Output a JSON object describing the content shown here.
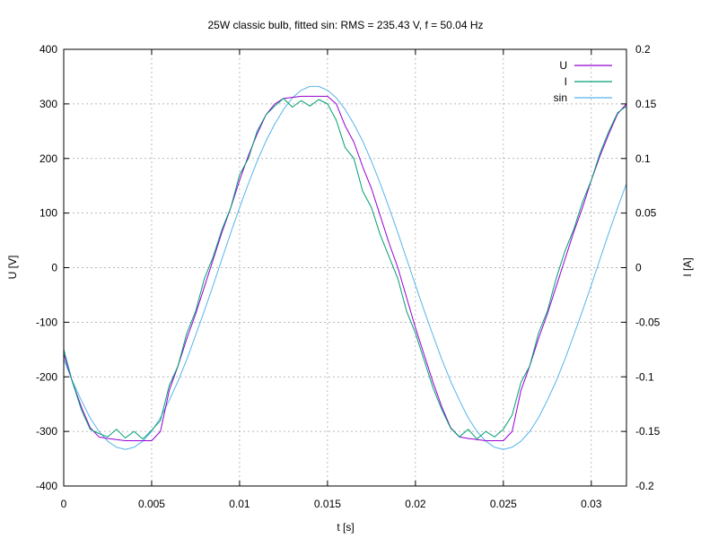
{
  "chart_data": {
    "type": "line",
    "title": "25W classic bulb, fitted sin: RMS = 235.43 V, f = 50.04 Hz",
    "xlabel": "t [s]",
    "ylabel_left": "U [V]",
    "ylabel_right": "I [A]",
    "xlim": [
      0,
      0.032
    ],
    "ylim_left": [
      -400,
      400
    ],
    "ylim_right": [
      -0.2,
      0.2
    ],
    "x_ticks": [
      "0",
      "0.005",
      "0.01",
      "0.015",
      "0.02",
      "0.025",
      "0.03"
    ],
    "y_ticks_left": [
      "400",
      "300",
      "200",
      "100",
      "0",
      "-100",
      "-200",
      "-300",
      "-400"
    ],
    "y_ticks_right": [
      "0.2",
      "0.15",
      "0.1",
      "0.05",
      "0",
      "-0.05",
      "-0.1",
      "-0.15",
      "-0.2"
    ],
    "grid": true,
    "legend_position": "top-right",
    "series": [
      {
        "name": "U",
        "axis": "left",
        "color": "#9400d3",
        "x": [
          0,
          0.0005,
          0.001,
          0.0015,
          0.002,
          0.0025,
          0.003,
          0.0035,
          0.004,
          0.0045,
          0.005,
          0.0055,
          0.006,
          0.0065,
          0.007,
          0.0075,
          0.008,
          0.0085,
          0.009,
          0.0095,
          0.01,
          0.0105,
          0.011,
          0.0115,
          0.012,
          0.0125,
          0.013,
          0.0135,
          0.014,
          0.0145,
          0.015,
          0.0155,
          0.016,
          0.0165,
          0.017,
          0.0175,
          0.018,
          0.0185,
          0.019,
          0.0195,
          0.02,
          0.0205,
          0.021,
          0.0215,
          0.022,
          0.0225,
          0.023,
          0.0235,
          0.024,
          0.0245,
          0.025,
          0.0255,
          0.026,
          0.0265,
          0.027,
          0.0275,
          0.028,
          0.0285,
          0.029,
          0.0295,
          0.03,
          0.0305,
          0.031,
          0.0315,
          0.032
        ],
        "values": [
          -158,
          -210,
          -255,
          -293,
          -310,
          -313,
          -315,
          -317,
          -317,
          -317,
          -317,
          -300,
          -225,
          -180,
          -130,
          -85,
          -35,
          15,
          65,
          110,
          160,
          205,
          245,
          280,
          300,
          310,
          312,
          314,
          314,
          314,
          314,
          300,
          260,
          230,
          185,
          145,
          95,
          45,
          0,
          -55,
          -110,
          -160,
          -210,
          -255,
          -293,
          -310,
          -313,
          -315,
          -317,
          -317,
          -317,
          -300,
          -225,
          -180,
          -130,
          -85,
          -35,
          15,
          65,
          110,
          160,
          205,
          245,
          282,
          300
        ]
      },
      {
        "name": "I",
        "axis": "right",
        "color": "#009e73",
        "x": [
          0,
          0.0005,
          0.001,
          0.0015,
          0.002,
          0.0025,
          0.003,
          0.0035,
          0.004,
          0.0045,
          0.005,
          0.0055,
          0.006,
          0.0065,
          0.007,
          0.0075,
          0.008,
          0.0085,
          0.009,
          0.0095,
          0.01,
          0.0105,
          0.011,
          0.0115,
          0.012,
          0.0125,
          0.013,
          0.0135,
          0.014,
          0.0145,
          0.015,
          0.0155,
          0.016,
          0.0165,
          0.017,
          0.0175,
          0.018,
          0.0185,
          0.019,
          0.0195,
          0.02,
          0.0205,
          0.021,
          0.0215,
          0.022,
          0.0225,
          0.023,
          0.0235,
          0.024,
          0.0245,
          0.025,
          0.0255,
          0.026,
          0.0265,
          0.027,
          0.0275,
          0.028,
          0.0285,
          0.029,
          0.0295,
          0.03,
          0.0305,
          0.031,
          0.0315,
          0.032
        ],
        "values": [
          -0.075,
          -0.105,
          -0.13,
          -0.148,
          -0.152,
          -0.155,
          -0.148,
          -0.156,
          -0.15,
          -0.157,
          -0.149,
          -0.14,
          -0.108,
          -0.09,
          -0.06,
          -0.04,
          -0.01,
          0.01,
          0.035,
          0.055,
          0.085,
          0.1,
          0.125,
          0.14,
          0.148,
          0.155,
          0.147,
          0.153,
          0.148,
          0.154,
          0.15,
          0.135,
          0.11,
          0.1,
          0.07,
          0.055,
          0.03,
          0.01,
          -0.01,
          -0.04,
          -0.06,
          -0.085,
          -0.11,
          -0.13,
          -0.147,
          -0.155,
          -0.148,
          -0.157,
          -0.15,
          -0.155,
          -0.148,
          -0.135,
          -0.105,
          -0.09,
          -0.06,
          -0.04,
          -0.01,
          0.015,
          0.035,
          0.06,
          0.08,
          0.105,
          0.125,
          0.142,
          0.148
        ]
      },
      {
        "name": "sin",
        "axis": "left",
        "color": "#56b4e9",
        "rms": 235.43,
        "frequency": 50.04,
        "x": [
          0,
          0.0005,
          0.001,
          0.0015,
          0.002,
          0.0025,
          0.003,
          0.0035,
          0.004,
          0.0045,
          0.005,
          0.0055,
          0.006,
          0.0065,
          0.007,
          0.0075,
          0.008,
          0.0085,
          0.009,
          0.0095,
          0.01,
          0.0105,
          0.011,
          0.0115,
          0.012,
          0.0125,
          0.013,
          0.0135,
          0.014,
          0.0145,
          0.015,
          0.0155,
          0.016,
          0.0165,
          0.017,
          0.0175,
          0.018,
          0.0185,
          0.019,
          0.0195,
          0.02,
          0.0205,
          0.021,
          0.0215,
          0.022,
          0.0225,
          0.023,
          0.0235,
          0.024,
          0.0245,
          0.025,
          0.0255,
          0.026,
          0.0265,
          0.027,
          0.0275,
          0.028,
          0.0285,
          0.029,
          0.0295,
          0.03,
          0.0305,
          0.031,
          0.0315,
          0.032
        ],
        "values": [
          -168,
          -208,
          -243,
          -275,
          -300,
          -318,
          -329,
          -333,
          -329,
          -318,
          -300,
          -275,
          -243,
          -208,
          -168,
          -124,
          -79,
          -32,
          16,
          64,
          110,
          154,
          195,
          232,
          263,
          290,
          311,
          325,
          332,
          332,
          325,
          311,
          290,
          263,
          232,
          195,
          154,
          110,
          64,
          16,
          -32,
          -79,
          -124,
          -168,
          -208,
          -243,
          -275,
          -300,
          -318,
          -329,
          -333,
          -329,
          -318,
          -300,
          -275,
          -243,
          -208,
          -168,
          -124,
          -79,
          -32,
          16,
          64,
          110,
          154
        ]
      }
    ]
  }
}
